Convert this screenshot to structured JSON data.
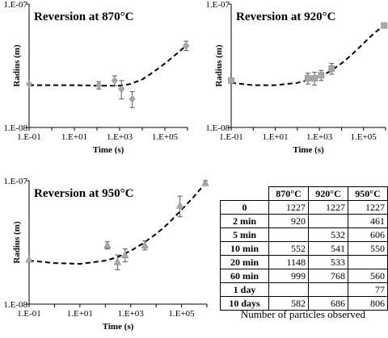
{
  "chart_data": [
    {
      "type": "scatter",
      "title": "Reversion at 870°C",
      "xlabel": "Time (s)",
      "ylabel": "Radius (m)",
      "xscale": "log",
      "yscale": "log",
      "xlim": [
        0.1,
        1000000
      ],
      "ylim": [
        1e-08,
        1e-07
      ],
      "xticks": [
        "1.E-01",
        "1.E+01",
        "1.E+03",
        "1.E+05"
      ],
      "yticks": [
        "1.E-08",
        "1.E-07"
      ],
      "marker": "diamond",
      "marker_color": "#a8a8a8",
      "points": [
        {
          "x": 0.1,
          "y": 2.25e-08,
          "err": 0
        },
        {
          "x": 120,
          "y": 2.2e-08,
          "err": 1.5e-09
        },
        {
          "x": 600,
          "y": 2.4e-08,
          "err": 2.2e-09
        },
        {
          "x": 1200,
          "y": 2.05e-08,
          "err": 3.5e-09
        },
        {
          "x": 3600,
          "y": 1.7e-08,
          "err": 2.5e-09
        },
        {
          "x": 864000,
          "y": 4.6e-08,
          "err": 4e-09
        }
      ],
      "fit": {
        "style": "dashed",
        "x": [
          0.1,
          1,
          10,
          100,
          1000,
          3000,
          10000,
          30000,
          100000,
          300000,
          864000
        ],
        "y": [
          2.2e-08,
          2.2e-08,
          2.2e-08,
          2.18e-08,
          2.18e-08,
          2.25e-08,
          2.45e-08,
          2.8e-08,
          3.3e-08,
          3.9e-08,
          4.6e-08
        ]
      }
    },
    {
      "type": "scatter",
      "title": "Reversion at 920°C",
      "xlabel": "Time (s)",
      "ylabel": "Radius (m)",
      "xscale": "log",
      "yscale": "log",
      "xlim": [
        0.1,
        1000000
      ],
      "ylim": [
        1e-08,
        1e-07
      ],
      "xticks": [
        "1.E-01",
        "1.E+01",
        "1.E+03",
        "1.E+05"
      ],
      "yticks": [
        "1.E-08",
        "1.E-07"
      ],
      "marker": "square",
      "marker_color": "#a8a8a8",
      "points": [
        {
          "x": 0.1,
          "y": 2.4e-08,
          "err": 0
        },
        {
          "x": 300,
          "y": 2.5e-08,
          "err": 2.5e-09
        },
        {
          "x": 600,
          "y": 2.5e-08,
          "err": 3e-09
        },
        {
          "x": 1200,
          "y": 2.65e-08,
          "err": 2.5e-09
        },
        {
          "x": 3600,
          "y": 3e-08,
          "err": 3e-09
        },
        {
          "x": 864000,
          "y": 6.7e-08,
          "err": 3e-09
        }
      ],
      "fit": {
        "style": "dashed",
        "x": [
          0.1,
          1,
          10,
          100,
          1000,
          3000,
          10000,
          30000,
          100000,
          300000,
          864000
        ],
        "y": [
          2.3e-08,
          2.2e-08,
          2.2e-08,
          2.3e-08,
          2.55e-08,
          2.85e-08,
          3.3e-08,
          3.9e-08,
          4.8e-08,
          5.8e-08,
          6.7e-08
        ]
      }
    },
    {
      "type": "scatter",
      "title": "Reversion at 950°C",
      "xlabel": "Time (s)",
      "ylabel": "Radius (m)",
      "xscale": "log",
      "yscale": "log",
      "xlim": [
        0.1,
        1000000
      ],
      "ylim": [
        1e-08,
        1e-07
      ],
      "xticks": [
        "1.E-01",
        "1.E+01",
        "1.E+03",
        "1.E+05"
      ],
      "yticks": [
        "1.E-08",
        "1.E-07"
      ],
      "marker": "triangle",
      "marker_color": "#a8a8a8",
      "points": [
        {
          "x": 0.1,
          "y": 2.3e-08,
          "err": 0
        },
        {
          "x": 120,
          "y": 3e-08,
          "err": 2e-09
        },
        {
          "x": 300,
          "y": 2.2e-08,
          "err": 3e-09
        },
        {
          "x": 600,
          "y": 2.5e-08,
          "err": 3e-09
        },
        {
          "x": 3600,
          "y": 3e-08,
          "err": 2.5e-09
        },
        {
          "x": 86400,
          "y": 6.3e-08,
          "err": 1.2e-08
        },
        {
          "x": 864000,
          "y": 9.6e-08,
          "err": 4e-09
        }
      ],
      "fit": {
        "style": "dashed",
        "x": [
          0.1,
          1,
          10,
          100,
          300,
          1000,
          3000,
          10000,
          30000,
          100000,
          300000,
          864000
        ],
        "y": [
          2.25e-08,
          2.15e-08,
          2.12e-08,
          2.25e-08,
          2.4e-08,
          2.7e-08,
          3.1e-08,
          3.7e-08,
          4.5e-08,
          5.8e-08,
          7.4e-08,
          9.5e-08
        ]
      }
    },
    {
      "type": "table",
      "columns": [
        "",
        "870°C",
        "920°C",
        "950°C"
      ],
      "rows": [
        {
          "label": "0",
          "values": [
            "1227",
            "1227",
            "1227"
          ]
        },
        {
          "label": "2 min",
          "values": [
            "920",
            "",
            "461"
          ]
        },
        {
          "label": "5 min",
          "values": [
            "",
            "532",
            "606"
          ]
        },
        {
          "label": "10 min",
          "values": [
            "552",
            "541",
            "550"
          ]
        },
        {
          "label": "20 min",
          "values": [
            "1148",
            "533",
            ""
          ]
        },
        {
          "label": "60 min",
          "values": [
            "999",
            "768",
            "560"
          ]
        },
        {
          "label": "1 day",
          "values": [
            "",
            "",
            "77"
          ]
        },
        {
          "label": "10 days",
          "values": [
            "582",
            "686",
            "806"
          ]
        }
      ],
      "caption": "Number of particles observed"
    }
  ]
}
